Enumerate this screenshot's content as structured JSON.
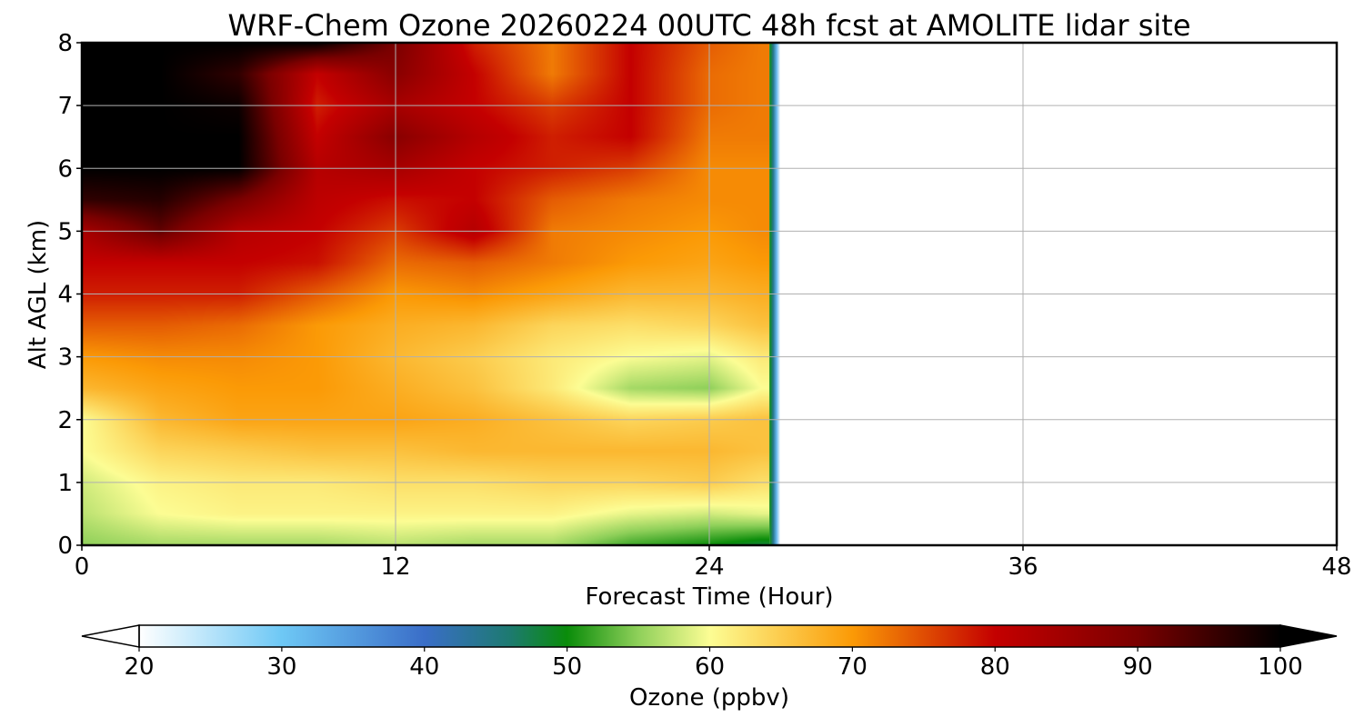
{
  "chart_data": {
    "type": "heatmap",
    "title": "WRF-Chem Ozone  20260224 00UTC 48h fcst at AMOLITE lidar site",
    "xlabel": "Forecast Time (Hour)",
    "ylabel": "Alt AGL (km)",
    "xlim": [
      0,
      48
    ],
    "ylim": [
      0,
      8
    ],
    "x_ticks": [
      0,
      12,
      24,
      36,
      48
    ],
    "y_ticks": [
      0,
      1,
      2,
      3,
      4,
      5,
      6,
      7,
      8
    ],
    "grid": true,
    "data_extent_x": [
      0,
      26.3
    ],
    "x": [
      0,
      3,
      6,
      9,
      12,
      15,
      18,
      21,
      24,
      26
    ],
    "y": [
      0,
      0.5,
      1,
      1.5,
      2,
      2.5,
      3,
      3.5,
      4,
      4.5,
      5,
      5.5,
      6,
      6.5,
      7,
      7.5,
      8
    ],
    "z": [
      [
        55,
        56,
        56,
        56,
        57,
        56,
        56,
        52,
        50,
        48
      ],
      [
        57,
        60,
        61,
        61,
        61,
        61,
        61,
        59,
        58,
        59
      ],
      [
        58,
        61,
        62,
        62,
        63,
        63,
        64,
        64,
        65,
        63
      ],
      [
        60,
        64,
        65,
        66,
        66,
        67,
        67,
        67,
        67,
        66
      ],
      [
        60,
        67,
        69,
        69,
        69,
        68,
        66,
        64,
        65,
        66
      ],
      [
        67,
        69,
        70,
        70,
        68,
        66,
        62,
        56,
        55,
        60
      ],
      [
        70,
        71,
        71,
        70,
        67,
        65,
        62,
        60,
        59,
        62
      ],
      [
        74,
        74,
        73,
        70,
        68,
        67,
        64,
        63,
        64,
        66
      ],
      [
        78,
        78,
        78,
        74,
        70,
        71,
        69,
        67,
        67,
        68
      ],
      [
        80,
        80,
        80,
        79,
        73,
        74,
        72,
        70,
        69,
        70
      ],
      [
        84,
        92,
        82,
        80,
        76,
        82,
        72,
        71,
        70,
        71
      ],
      [
        96,
        97,
        90,
        81,
        79,
        80,
        74,
        72,
        71,
        71
      ],
      [
        100,
        100,
        100,
        82,
        84,
        80,
        78,
        76,
        71,
        71
      ],
      [
        100,
        100,
        100,
        80,
        88,
        82,
        78,
        80,
        72,
        72
      ],
      [
        100,
        100,
        99,
        78,
        84,
        80,
        76,
        80,
        73,
        72
      ],
      [
        100,
        100,
        96,
        80,
        88,
        80,
        72,
        80,
        73,
        72
      ],
      [
        100,
        100,
        100,
        100,
        90,
        78,
        72,
        80,
        74,
        72
      ]
    ],
    "colorbar": {
      "label": "Ozone  (ppbv)",
      "min": 20,
      "max": 100,
      "ticks": [
        20,
        30,
        40,
        50,
        60,
        70,
        80,
        90,
        100
      ],
      "extend": "both",
      "stops": [
        {
          "value": 20,
          "color": "#ffffff"
        },
        {
          "value": 30,
          "color": "#6ec8f5"
        },
        {
          "value": 40,
          "color": "#3a6ec8"
        },
        {
          "value": 46,
          "color": "#1d7a70"
        },
        {
          "value": 50,
          "color": "#0a8c0a"
        },
        {
          "value": 55,
          "color": "#8fd05a"
        },
        {
          "value": 60,
          "color": "#fcfd94"
        },
        {
          "value": 70,
          "color": "#fb9a06"
        },
        {
          "value": 80,
          "color": "#c40000"
        },
        {
          "value": 90,
          "color": "#7a0000"
        },
        {
          "value": 100,
          "color": "#000000"
        }
      ]
    }
  }
}
